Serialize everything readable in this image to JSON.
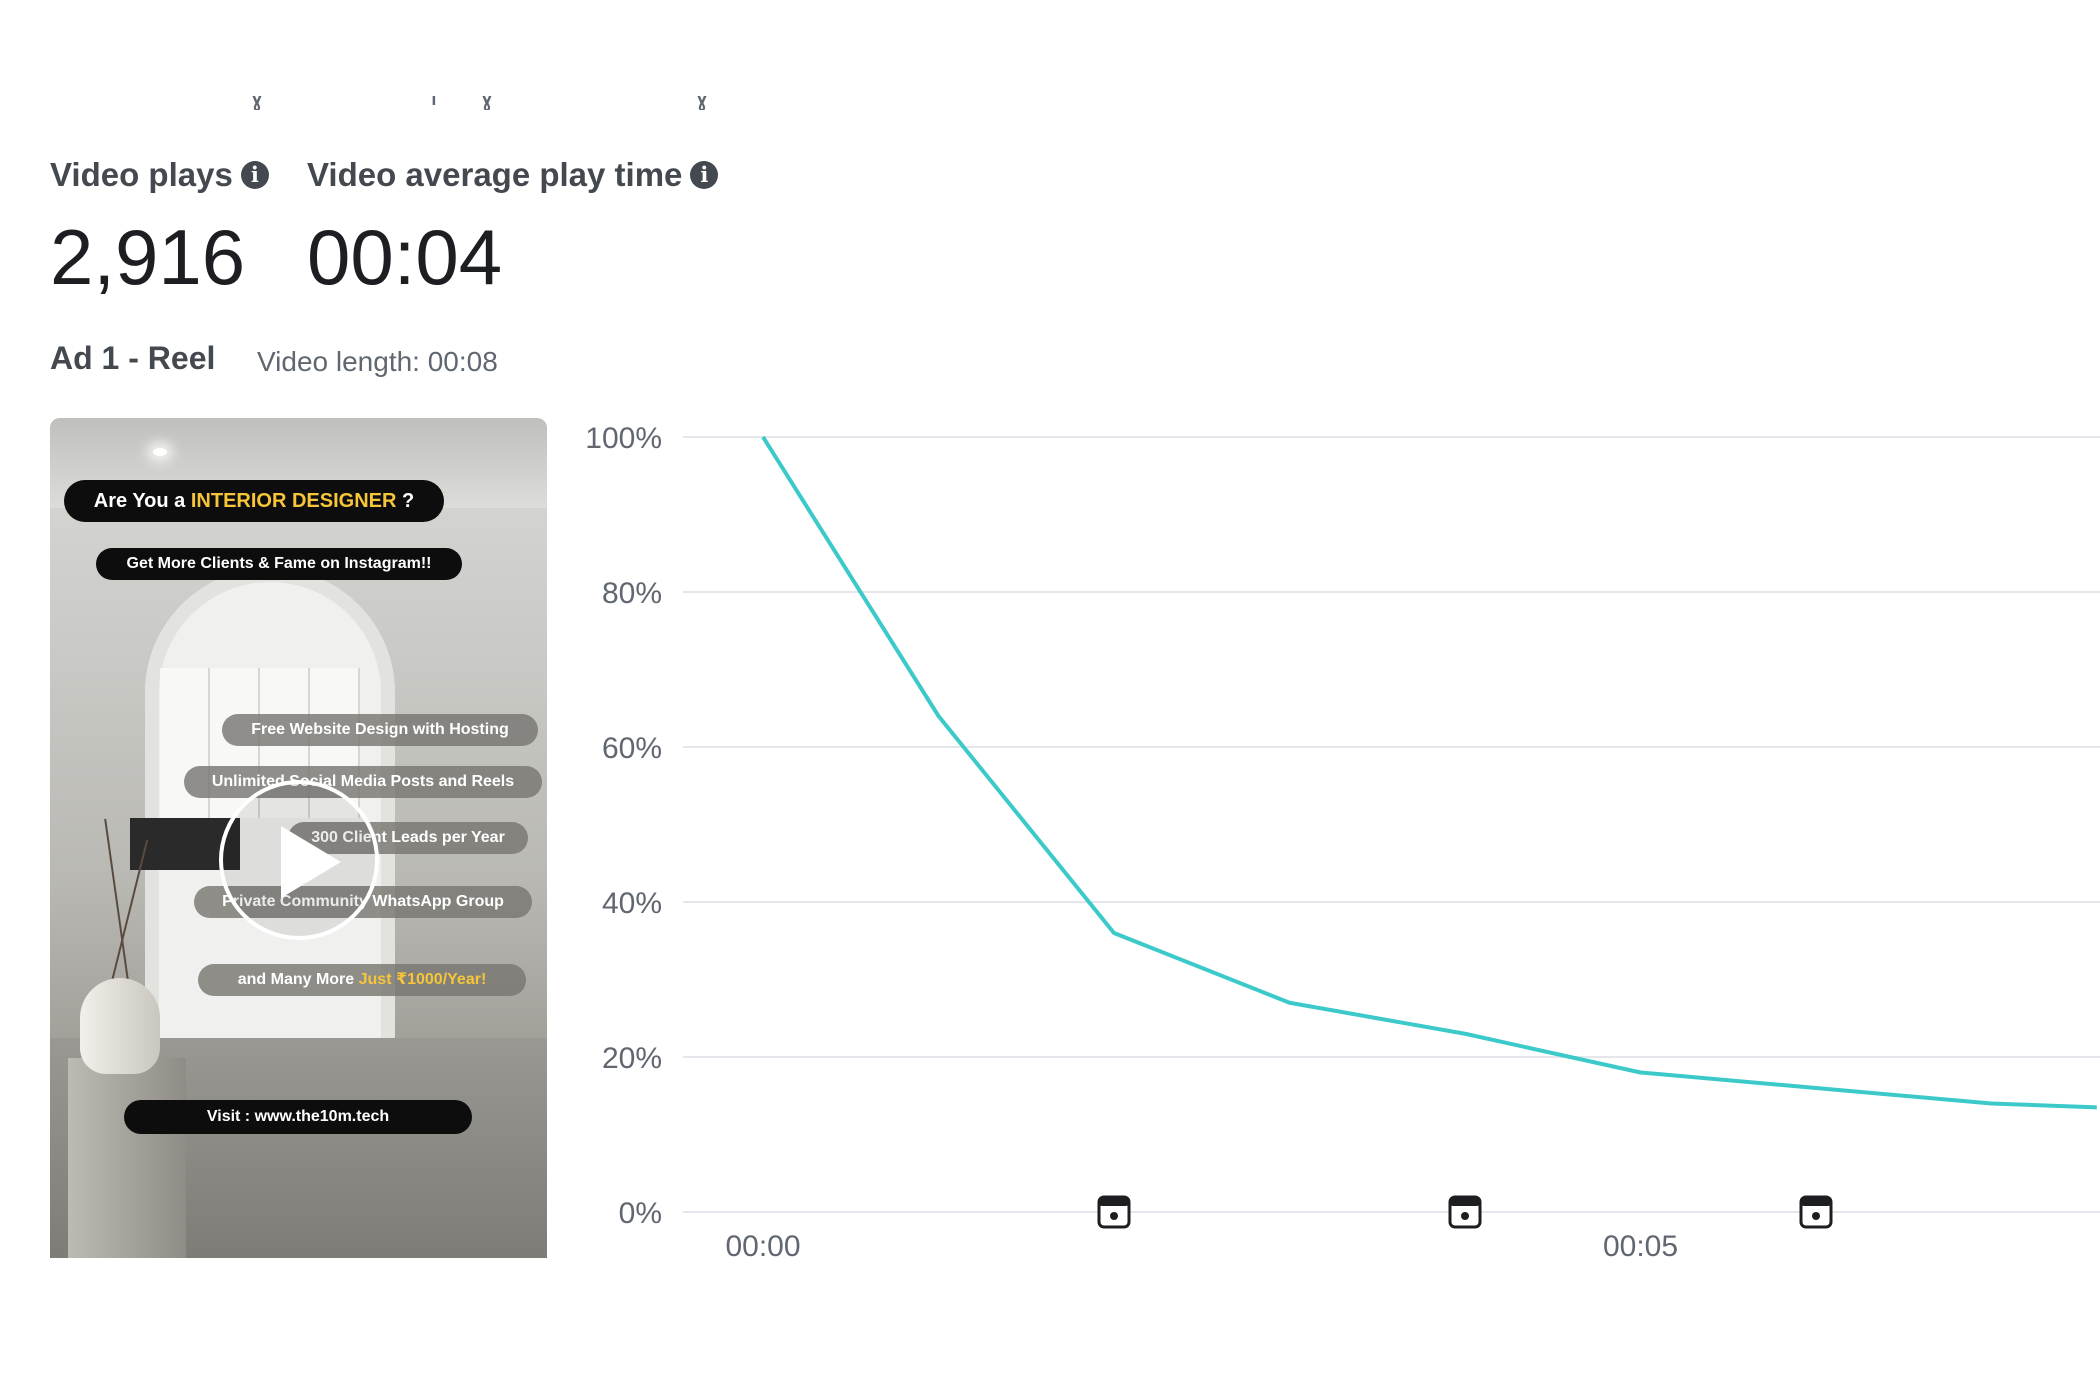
{
  "metrics": {
    "video_plays": {
      "label": "Video plays",
      "value": "2,916",
      "icon": "info-icon"
    },
    "avg_play_time": {
      "label": "Video average play time",
      "value": "00:04",
      "icon": "info-icon"
    }
  },
  "ad": {
    "title": "Ad 1 - Reel",
    "video_length": "Video length: 00:08"
  },
  "thumbnail": {
    "headline_prefix": "Are You a ",
    "headline_highlight": "INTERIOR DESIGNER",
    "headline_suffix": " ?",
    "sub": "Get More Clients & Fame on Instagram!!",
    "bullets": [
      "Free Website Design with Hosting",
      "Unlimited Social Media Posts and Reels",
      "300 Client Leads per Year",
      "Private Community WhatsApp Group"
    ],
    "more_prefix": "and Many More ",
    "more_highlight": "Just ₹1000/Year!",
    "visit": "Visit : www.the10m.tech",
    "play_icon": "play-icon"
  },
  "colors": {
    "line": "#3cc9c9",
    "grid": "#e4e6eb",
    "highlight": "#f6c53a"
  },
  "chart_data": {
    "type": "line",
    "title": "",
    "xlabel": "",
    "ylabel": "",
    "x": [
      0,
      1,
      2,
      3,
      4,
      5,
      6,
      7,
      7.6
    ],
    "values": [
      100,
      64,
      36,
      27,
      23,
      18,
      16,
      14,
      13.5
    ],
    "x_tick_labels": [
      {
        "x": 0,
        "label": "00:00"
      },
      {
        "x": 5,
        "label": "00:05"
      }
    ],
    "y_tick_labels": [
      "0%",
      "20%",
      "40%",
      "60%",
      "80%",
      "100%"
    ],
    "ylim": [
      0,
      100
    ],
    "xlim": [
      0,
      7.6
    ],
    "grid": true,
    "markers": [
      {
        "x": 2,
        "icon": "calendar-icon"
      },
      {
        "x": 4,
        "icon": "calendar-icon"
      },
      {
        "x": 6,
        "icon": "calendar-icon"
      }
    ]
  }
}
